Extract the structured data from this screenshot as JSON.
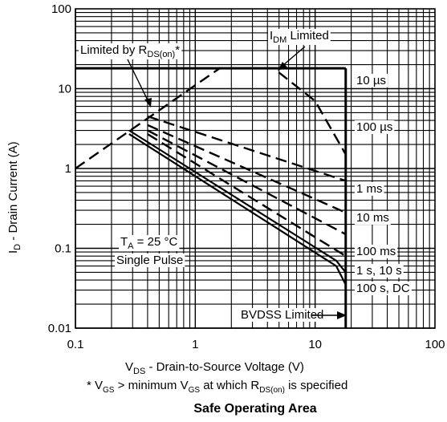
{
  "chart_data": {
    "type": "line",
    "title": "Safe Operating Area",
    "xscale": "log",
    "yscale": "log",
    "xlim": [
      0.1,
      100
    ],
    "ylim": [
      0.01,
      100
    ],
    "grid": true,
    "x_ticks": [
      "0.1",
      "1",
      "10",
      "100"
    ],
    "y_ticks": [
      "0.01",
      "0.1",
      "1",
      "10",
      "100"
    ],
    "xlabel": {
      "main": "V",
      "sub": "DS",
      "rest": " - Drain-to-Source Voltage (V)"
    },
    "ylabel": {
      "main": "I",
      "sub": "D",
      "rest": " - Drain Current (A)"
    },
    "footnote": {
      "a": "* V",
      "b": "GS",
      "c": " > minimum V",
      "d": "GS",
      "e": " at which R",
      "f": "DS(on)",
      "g": " is specified"
    },
    "annotations": {
      "rds": {
        "a": "Limited by R",
        "b": "DS(on)",
        "c": "*"
      },
      "idm": {
        "a": "I",
        "b": "DM",
        "c": " Limited"
      },
      "ta": {
        "a": "T",
        "b": "A",
        "c": " = 25 °C"
      },
      "pulse": "Single Pulse",
      "bvdss": "BVDSS Limited"
    },
    "limits": {
      "idm_current": 18,
      "bvdss_voltage": 18
    },
    "series": [
      {
        "name": "10 µs",
        "style": "dashed",
        "x": [
          0.1,
          1.6,
          4.5,
          10,
          18
        ],
        "y": [
          1,
          18,
          18,
          7,
          1.5
        ]
      },
      {
        "name": "100 µs",
        "style": "dashed",
        "x": [
          0.4,
          18
        ],
        "y": [
          4.5,
          0.7
        ]
      },
      {
        "name": "1 ms",
        "style": "dashed",
        "x": [
          0.4,
          18
        ],
        "y": [
          3.5,
          0.28
        ]
      },
      {
        "name": "10 ms",
        "style": "dashed",
        "x": [
          0.4,
          18
        ],
        "y": [
          3.0,
          0.15
        ]
      },
      {
        "name": "100 ms",
        "style": "dashed",
        "x": [
          0.4,
          18
        ],
        "y": [
          2.7,
          0.08
        ]
      },
      {
        "name": "1 s, 10 s",
        "style": "solid",
        "x": [
          0.28,
          15,
          18
        ],
        "y": [
          3.0,
          0.07,
          0.05
        ]
      },
      {
        "name": "100 s, DC",
        "style": "solid",
        "x": [
          0.28,
          15,
          18
        ],
        "y": [
          2.7,
          0.06,
          0.035
        ]
      }
    ]
  }
}
